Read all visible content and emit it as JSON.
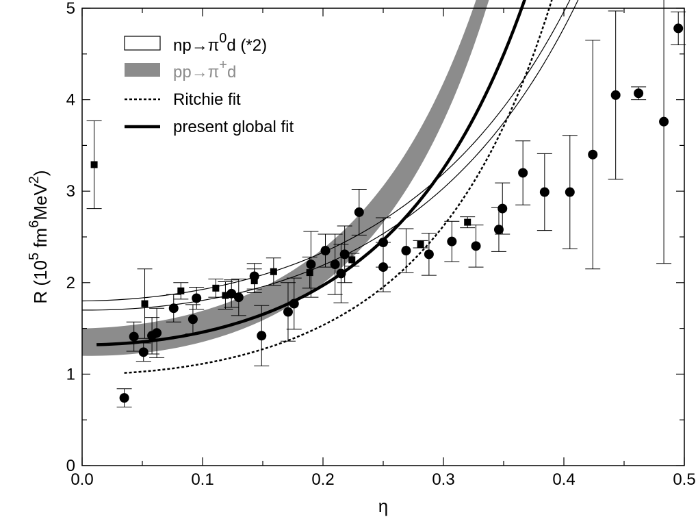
{
  "chart_data": {
    "type": "scatter",
    "xlabel": "η",
    "ylabel": {
      "prefix": "R  (10",
      "exp1": "5",
      "mid": " fm",
      "exp2": "6",
      "mid2": "MeV",
      "exp3": "2",
      "suffix": ")"
    },
    "xlim": [
      0.0,
      0.5
    ],
    "ylim": [
      0,
      5
    ],
    "x_ticks": [
      "0.0",
      "0.1",
      "0.2",
      "0.3",
      "0.4",
      "0.5"
    ],
    "y_ticks": [
      "0",
      "1",
      "2",
      "3",
      "4",
      "5"
    ],
    "grid": false,
    "legend_position": "top-left",
    "legend": [
      {
        "kind": "band-outline",
        "base": "np→π",
        "sup": "0",
        "rest": "d (*2)",
        "color": "#000000"
      },
      {
        "kind": "band-filled",
        "base": "pp→π",
        "sup": "+",
        "rest": "d",
        "color": "#8c8c8c"
      },
      {
        "kind": "dashed-line",
        "base": "Ritchie fit",
        "sup": "",
        "rest": "",
        "color": "#000000"
      },
      {
        "kind": "thick-line",
        "base": "present global fit",
        "sup": "",
        "rest": "",
        "color": "#000000"
      }
    ],
    "series": [
      {
        "marker": "circle",
        "points": [
          {
            "x": 0.035,
            "y": 0.74,
            "err": 0.1
          },
          {
            "x": 0.043,
            "y": 1.41,
            "err": 0.16
          },
          {
            "x": 0.051,
            "y": 1.24,
            "err": 0.1
          },
          {
            "x": 0.058,
            "y": 1.42,
            "err": 0.2
          },
          {
            "x": 0.062,
            "y": 1.45,
            "err": 0.27
          },
          {
            "x": 0.076,
            "y": 1.72,
            "err": 0.15
          },
          {
            "x": 0.092,
            "y": 1.6,
            "err": 0.16
          },
          {
            "x": 0.095,
            "y": 1.83,
            "err": 0.12
          },
          {
            "x": 0.124,
            "y": 1.88,
            "err": 0.15
          },
          {
            "x": 0.13,
            "y": 1.84,
            "err": 0.2
          },
          {
            "x": 0.143,
            "y": 2.07,
            "err": 0.14
          },
          {
            "x": 0.149,
            "y": 1.42,
            "err": 0.33
          },
          {
            "x": 0.171,
            "y": 1.68,
            "err": 0.32
          },
          {
            "x": 0.176,
            "y": 1.77,
            "err": 0.28
          },
          {
            "x": 0.19,
            "y": 2.2,
            "err": 0.36
          },
          {
            "x": 0.202,
            "y": 2.35,
            "err": 0.18
          },
          {
            "x": 0.21,
            "y": 2.2,
            "err": 0.33
          },
          {
            "x": 0.215,
            "y": 2.1,
            "err": 0.32
          },
          {
            "x": 0.218,
            "y": 2.31,
            "err": 0.31
          },
          {
            "x": 0.23,
            "y": 2.77,
            "err": 0.25
          },
          {
            "x": 0.25,
            "y": 2.44,
            "err": 0.27
          },
          {
            "x": 0.25,
            "y": 2.17,
            "err": 0.27
          },
          {
            "x": 0.269,
            "y": 2.35,
            "err": 0.24
          },
          {
            "x": 0.288,
            "y": 2.31,
            "err": 0.23
          },
          {
            "x": 0.307,
            "y": 2.45,
            "err": 0.22
          },
          {
            "x": 0.327,
            "y": 2.4,
            "err": 0.23
          },
          {
            "x": 0.346,
            "y": 2.58,
            "err": 0.24
          },
          {
            "x": 0.349,
            "y": 2.81,
            "err": 0.28
          },
          {
            "x": 0.366,
            "y": 3.2,
            "err": 0.35
          },
          {
            "x": 0.384,
            "y": 2.99,
            "err": 0.42
          },
          {
            "x": 0.405,
            "y": 2.99,
            "err": 0.62
          },
          {
            "x": 0.424,
            "y": 3.4,
            "err": 1.25
          },
          {
            "x": 0.443,
            "y": 4.05,
            "err": 0.92
          },
          {
            "x": 0.462,
            "y": 4.07,
            "err": 0.07
          },
          {
            "x": 0.483,
            "y": 3.76,
            "err": 1.55
          },
          {
            "x": 0.495,
            "y": 4.78,
            "err": 0.18
          }
        ]
      },
      {
        "marker": "square",
        "points": [
          {
            "x": 0.01,
            "y": 3.29,
            "err": 0.48
          },
          {
            "x": 0.052,
            "y": 1.77,
            "err": 0.38
          },
          {
            "x": 0.082,
            "y": 1.91,
            "err": 0.09
          },
          {
            "x": 0.111,
            "y": 1.94,
            "err": 0.1
          },
          {
            "x": 0.119,
            "y": 1.86,
            "err": 0.15
          },
          {
            "x": 0.143,
            "y": 2.02,
            "err": 0.13
          },
          {
            "x": 0.159,
            "y": 2.12,
            "err": 0.15
          },
          {
            "x": 0.189,
            "y": 2.11,
            "err": 0.17
          },
          {
            "x": 0.224,
            "y": 2.25,
            "err": 0.07
          },
          {
            "x": 0.281,
            "y": 2.42,
            "err": 0.04
          },
          {
            "x": 0.32,
            "y": 2.66,
            "err": 0.06
          }
        ]
      }
    ],
    "curves": {
      "pp_band": {
        "x_range": [
          0.0,
          0.5
        ],
        "a": 1.35,
        "b": 0.15,
        "c": 12.0,
        "d": 0.2
      },
      "np_band": {
        "x_range": [
          0.0,
          0.5
        ],
        "a": 1.75,
        "b": 0.05,
        "c": 6.4,
        "d": 0.1
      },
      "ritchie": {
        "x_range": [
          0.035,
          0.497
        ],
        "a": 1.0,
        "c": 10.7
      },
      "global": {
        "x_range": [
          0.012,
          0.49
        ],
        "a": 1.32,
        "c": 10.0
      }
    }
  }
}
